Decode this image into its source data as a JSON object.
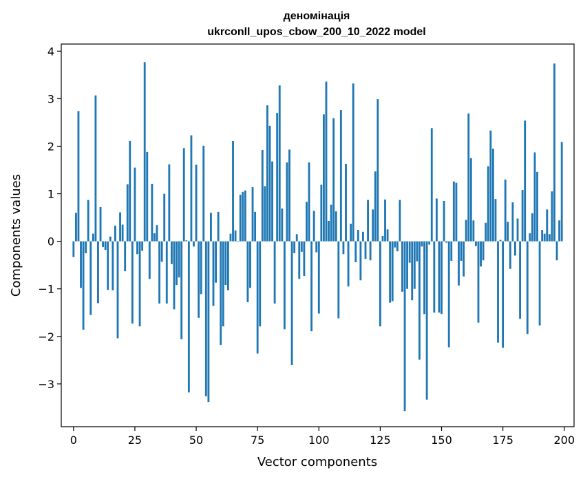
{
  "chart_data": {
    "type": "bar",
    "title": "деномінація",
    "subtitle": "ukrconll_upos_cbow_200_10_2022 model",
    "xlabel": "Vector components",
    "ylabel": "Components values",
    "xlim": [
      -5,
      204
    ],
    "ylim": [
      -3.9,
      4.15
    ],
    "xticks": [
      0,
      25,
      50,
      75,
      100,
      125,
      150,
      175,
      200
    ],
    "xtick_labels": [
      "0",
      "25",
      "50",
      "75",
      "100",
      "125",
      "150",
      "175",
      "200"
    ],
    "yticks": [
      -3,
      -2,
      -1,
      0,
      1,
      2,
      3,
      4
    ],
    "ytick_labels": [
      "−3",
      "−2",
      "−1",
      "0",
      "1",
      "2",
      "3",
      "4"
    ],
    "grid": false,
    "bar_color": "#1f77b4",
    "x": [
      0,
      1,
      2,
      3,
      4,
      5,
      6,
      7,
      8,
      9,
      10,
      11,
      12,
      13,
      14,
      15,
      16,
      17,
      18,
      19,
      20,
      21,
      22,
      23,
      24,
      25,
      26,
      27,
      28,
      29,
      30,
      31,
      32,
      33,
      34,
      35,
      36,
      37,
      38,
      39,
      40,
      41,
      42,
      43,
      44,
      45,
      46,
      47,
      48,
      49,
      50,
      51,
      52,
      53,
      54,
      55,
      56,
      57,
      58,
      59,
      60,
      61,
      62,
      63,
      64,
      65,
      66,
      67,
      68,
      69,
      70,
      71,
      72,
      73,
      74,
      75,
      76,
      77,
      78,
      79,
      80,
      81,
      82,
      83,
      84,
      85,
      86,
      87,
      88,
      89,
      90,
      91,
      92,
      93,
      94,
      95,
      96,
      97,
      98,
      99,
      100,
      101,
      102,
      103,
      104,
      105,
      106,
      107,
      108,
      109,
      110,
      111,
      112,
      113,
      114,
      115,
      116,
      117,
      118,
      119,
      120,
      121,
      122,
      123,
      124,
      125,
      126,
      127,
      128,
      129,
      130,
      131,
      132,
      133,
      134,
      135,
      136,
      137,
      138,
      139,
      140,
      141,
      142,
      143,
      144,
      145,
      146,
      147,
      148,
      149,
      150,
      151,
      152,
      153,
      154,
      155,
      156,
      157,
      158,
      159,
      160,
      161,
      162,
      163,
      164,
      165,
      166,
      167,
      168,
      169,
      170,
      171,
      172,
      173,
      174,
      175,
      176,
      177,
      178,
      179,
      180,
      181,
      182,
      183,
      184,
      185,
      186,
      187,
      188,
      189,
      190,
      191,
      192,
      193,
      194,
      195,
      196,
      197,
      198,
      199
    ],
    "values": [
      -0.33,
      0.6,
      2.74,
      -0.98,
      -1.86,
      -0.25,
      0.87,
      -1.55,
      0.16,
      3.07,
      -1.3,
      0.72,
      -0.12,
      -0.18,
      -1.02,
      0.1,
      -1.03,
      0.33,
      -2.04,
      0.61,
      0.35,
      -0.63,
      1.2,
      2.11,
      -1.73,
      1.55,
      -0.27,
      -1.79,
      -0.2,
      3.77,
      1.88,
      -0.79,
      1.21,
      0.17,
      0.34,
      -1.31,
      -0.43,
      1.0,
      -1.31,
      1.62,
      -0.48,
      -1.43,
      -0.92,
      -0.76,
      -2.06,
      1.96,
      0.02,
      -3.18,
      2.23,
      -0.11,
      1.61,
      -1.61,
      -1.11,
      2.01,
      -3.26,
      -3.38,
      0.6,
      -1.36,
      -0.87,
      0.62,
      -2.18,
      -1.79,
      -0.92,
      -1.03,
      0.16,
      2.11,
      0.23,
      -0.01,
      0.98,
      1.04,
      1.07,
      -1.28,
      -0.98,
      1.14,
      0.62,
      -2.36,
      -1.79,
      1.92,
      1.16,
      2.86,
      2.43,
      1.68,
      -1.31,
      2.7,
      3.28,
      0.69,
      -1.85,
      1.66,
      1.93,
      -2.6,
      -0.25,
      0.15,
      -0.79,
      -0.22,
      -0.73,
      0.83,
      1.66,
      -1.89,
      0.64,
      -0.23,
      -1.52,
      1.19,
      2.67,
      3.36,
      0.43,
      0.77,
      2.59,
      0.63,
      -1.62,
      2.76,
      -0.27,
      1.63,
      -0.95,
      0.37,
      3.32,
      -0.44,
      0.24,
      -0.82,
      0.2,
      -0.37,
      0.87,
      -0.4,
      0.67,
      1.47,
      2.99,
      -1.79,
      0.11,
      0.88,
      0.25,
      -1.29,
      -1.26,
      -0.13,
      -0.21,
      0.87,
      -1.06,
      -3.57,
      -1.0,
      -0.45,
      -1.24,
      -1.0,
      -0.42,
      -2.49,
      -0.11,
      -1.53,
      -3.33,
      -0.07,
      2.38,
      -1.5,
      0.9,
      -1.5,
      -1.53,
      0.85,
      -0.03,
      -2.23,
      -0.41,
      1.26,
      1.23,
      -0.93,
      -0.41,
      -0.74,
      0.45,
      2.69,
      1.75,
      0.44,
      -0.1,
      -1.71,
      -0.53,
      -0.4,
      0.39,
      1.58,
      2.33,
      1.95,
      0.89,
      -2.13,
      0.03,
      -2.24,
      1.3,
      0.41,
      -0.58,
      0.82,
      -0.3,
      0.48,
      -1.63,
      1.08,
      2.54,
      -1.95,
      0.17,
      0.59,
      1.87,
      1.46,
      -1.77,
      0.24,
      0.16,
      0.67,
      0.15,
      1.05,
      3.74,
      -0.4,
      0.44,
      2.09
    ]
  }
}
